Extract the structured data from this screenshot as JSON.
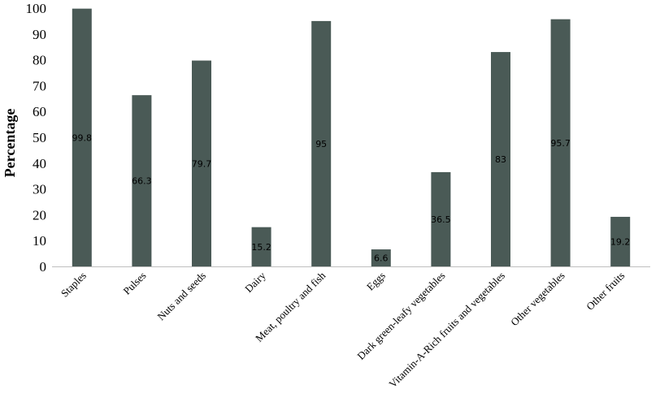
{
  "chart_data": {
    "type": "bar",
    "title": "",
    "xlabel": "",
    "ylabel": "Percentage",
    "ylim": [
      0,
      100
    ],
    "yticks": [
      0,
      10,
      20,
      30,
      40,
      50,
      60,
      70,
      80,
      90,
      100
    ],
    "grid": false,
    "legend": "none",
    "bar_color": "#4a5a56",
    "categories": [
      "Staples",
      "Pulses",
      "Nuts and seeds",
      "Dairy",
      "Meat, poultry and fish",
      "Eggs",
      "Dark green-leafy vegetables",
      "Vitamin-A-Rich fruits and vegetables",
      "Other vegetables",
      "Other fruits"
    ],
    "values": [
      99.8,
      66.3,
      79.7,
      15.2,
      95,
      6.6,
      36.5,
      83,
      95.7,
      19.2
    ],
    "data_labels": [
      "99.8",
      "66.3",
      "79.7",
      "15.2",
      "95",
      "6.6",
      "36.5",
      "83",
      "95.7",
      "19.2"
    ]
  }
}
